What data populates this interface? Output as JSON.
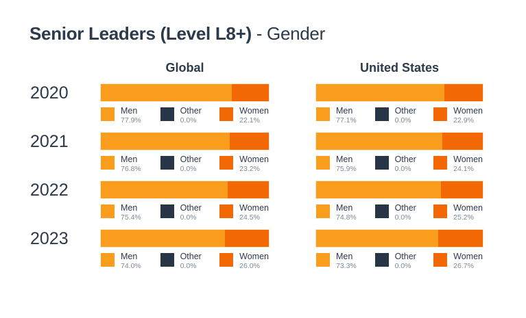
{
  "title": {
    "bold": "Senior Leaders (Level L8+)",
    "regular": " - Gender"
  },
  "columns": {
    "left": "Global",
    "right": "United States"
  },
  "legend_labels": {
    "men": "Men",
    "other": "Other",
    "women": "Women"
  },
  "colors": {
    "men": "#FA9D1C",
    "other": "#273546",
    "women": "#F26804",
    "text": "#2C3A4B",
    "muted": "#7E8994",
    "background": "#FFFFFF"
  },
  "rows": [
    {
      "year": "2020",
      "global": {
        "men": "77.9%",
        "other": "0.0%",
        "women": "22.1%",
        "men_pct": 77.9,
        "other_pct": 0.0,
        "women_pct": 22.1
      },
      "us": {
        "men": "77.1%",
        "other": "0.0%",
        "women": "22.9%",
        "men_pct": 77.1,
        "other_pct": 0.0,
        "women_pct": 22.9
      }
    },
    {
      "year": "2021",
      "global": {
        "men": "76.8%",
        "other": "0.0%",
        "women": "23.2%",
        "men_pct": 76.8,
        "other_pct": 0.0,
        "women_pct": 23.2
      },
      "us": {
        "men": "75.9%",
        "other": "0.0%",
        "women": "24.1%",
        "men_pct": 75.9,
        "other_pct": 0.0,
        "women_pct": 24.1
      }
    },
    {
      "year": "2022",
      "global": {
        "men": "75.4%",
        "other": "0.0%",
        "women": "24.5%",
        "men_pct": 75.4,
        "other_pct": 0.0,
        "women_pct": 24.5
      },
      "us": {
        "men": "74.8%",
        "other": "0.0%",
        "women": "25.2%",
        "men_pct": 74.8,
        "other_pct": 0.0,
        "women_pct": 25.2
      }
    },
    {
      "year": "2023",
      "global": {
        "men": "74.0%",
        "other": "0.0%",
        "women": "26.0%",
        "men_pct": 74.0,
        "other_pct": 0.0,
        "women_pct": 26.0
      },
      "us": {
        "men": "73.3%",
        "other": "0.0%",
        "women": "26.7%",
        "men_pct": 73.3,
        "other_pct": 0.0,
        "women_pct": 26.7
      }
    }
  ],
  "chart_data": {
    "type": "bar",
    "subtype": "horizontal-stacked",
    "title": "Senior Leaders (Level L8+) - Gender",
    "categories": [
      "2020",
      "2021",
      "2022",
      "2023"
    ],
    "unit": "%",
    "xlim": [
      0,
      100
    ],
    "grid": false,
    "legend_position": "below-each-bar",
    "groups": [
      {
        "name": "Global",
        "series": [
          {
            "name": "Men",
            "values": [
              77.9,
              76.8,
              75.4,
              74.0
            ]
          },
          {
            "name": "Other",
            "values": [
              0.0,
              0.0,
              0.0,
              0.0
            ]
          },
          {
            "name": "Women",
            "values": [
              22.1,
              23.2,
              24.5,
              26.0
            ]
          }
        ]
      },
      {
        "name": "United States",
        "series": [
          {
            "name": "Men",
            "values": [
              77.1,
              75.9,
              74.8,
              73.3
            ]
          },
          {
            "name": "Other",
            "values": [
              0.0,
              0.0,
              0.0,
              0.0
            ]
          },
          {
            "name": "Women",
            "values": [
              22.9,
              24.1,
              25.2,
              26.7
            ]
          }
        ]
      }
    ]
  }
}
